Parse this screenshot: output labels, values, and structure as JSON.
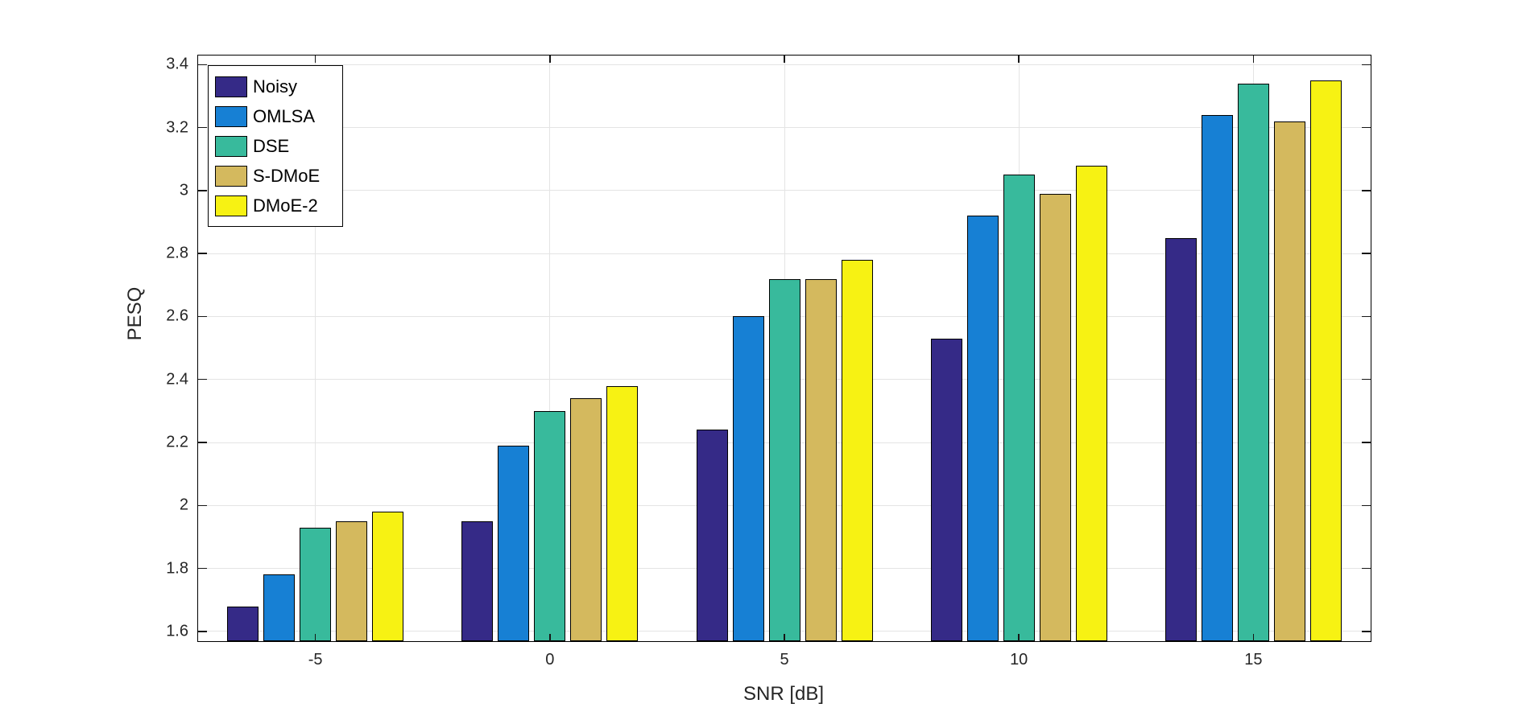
{
  "chart_data": {
    "type": "bar",
    "title": "",
    "xlabel": "SNR [dB]",
    "ylabel": "PESQ",
    "categories": [
      "-5",
      "0",
      "5",
      "10",
      "15"
    ],
    "series": [
      {
        "name": "Noisy",
        "color": "#352A87",
        "values": [
          1.68,
          1.95,
          2.24,
          2.53,
          2.85
        ]
      },
      {
        "name": "OMLSA",
        "color": "#1780D4",
        "values": [
          1.78,
          2.19,
          2.6,
          2.92,
          3.24
        ]
      },
      {
        "name": "DSE",
        "color": "#38BA9C",
        "values": [
          1.93,
          2.3,
          2.72,
          3.05,
          3.34
        ]
      },
      {
        "name": "S-DMoE",
        "color": "#D4B95E",
        "values": [
          1.95,
          2.34,
          2.72,
          2.99,
          3.22
        ]
      },
      {
        "name": "DMoE-2",
        "color": "#F7F213",
        "values": [
          1.98,
          2.38,
          2.78,
          3.08,
          3.35
        ]
      }
    ],
    "ylim": [
      1.569,
      3.429
    ],
    "yticks": [
      1.6,
      1.8,
      2.0,
      2.2,
      2.4,
      2.6,
      2.8,
      3.0,
      3.2,
      3.4
    ],
    "ytick_labels": [
      "1.6",
      "1.8",
      "2",
      "2.2",
      "2.4",
      "2.6",
      "2.8",
      "3",
      "3.2",
      "3.4"
    ],
    "xtick_labels": [
      "-5",
      "0",
      "5",
      "10",
      "15"
    ],
    "grid": "on",
    "legend_position": "top-left",
    "axes_color": "#000000",
    "grid_color": "#e4e4e4",
    "bar_edge_color": "#000000",
    "background": "#ffffff"
  }
}
